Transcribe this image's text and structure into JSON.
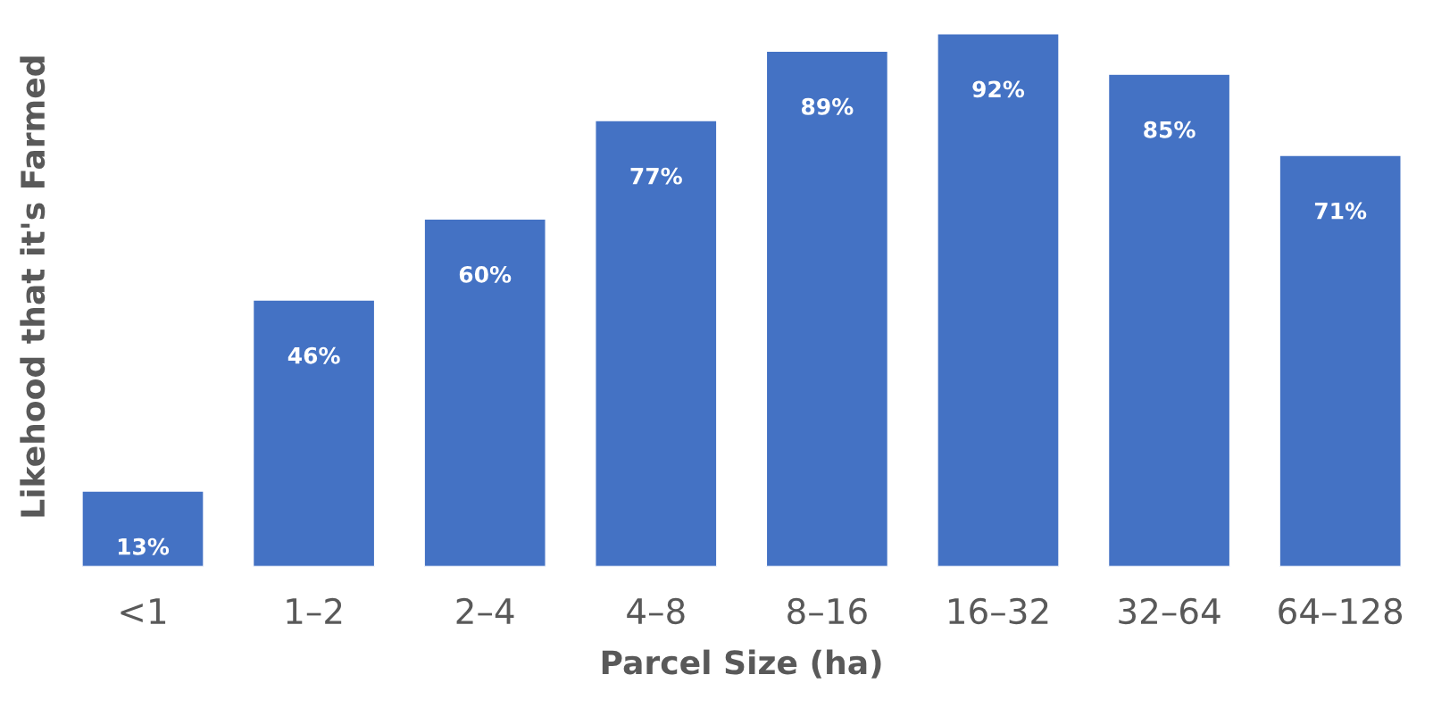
{
  "chart_data": {
    "type": "bar",
    "xlabel": "Parcel Size (ha)",
    "ylabel": "Likehood that it's Farmed",
    "categories": [
      "<1",
      "1–2",
      "2–4",
      "4–8",
      "8–16",
      "16–32",
      "32–64",
      "64–128"
    ],
    "values": [
      13,
      46,
      60,
      77,
      89,
      92,
      85,
      71
    ],
    "value_labels": [
      "13%",
      "46%",
      "60%",
      "77%",
      "89%",
      "92%",
      "85%",
      "71%"
    ],
    "color": "#4472c4",
    "tick_labels": "x",
    "grid": false,
    "legend": false
  }
}
